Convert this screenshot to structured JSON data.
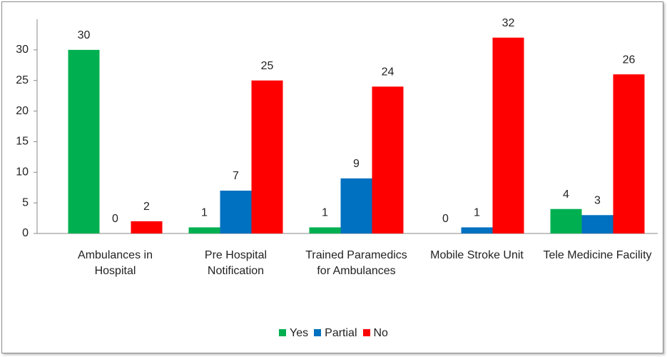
{
  "chart_data": {
    "type": "bar",
    "categories": [
      "Ambulances in Hospital",
      "Pre Hospital Notification",
      "Trained Paramedics for Ambulances",
      "Mobile Stroke Unit",
      "Tele Medicine Facility"
    ],
    "series": [
      {
        "name": "Yes",
        "color": "#00b050",
        "values": [
          30,
          1,
          1,
          0,
          4
        ]
      },
      {
        "name": "Partial",
        "color": "#0070c0",
        "values": [
          0,
          7,
          9,
          1,
          3
        ]
      },
      {
        "name": "No",
        "color": "#ff0000",
        "values": [
          2,
          25,
          24,
          32,
          26
        ]
      }
    ],
    "ylim": [
      0,
      35
    ],
    "yticks": [
      0,
      5,
      10,
      15,
      20,
      25,
      30
    ],
    "grid": false,
    "legend": "bottom"
  }
}
